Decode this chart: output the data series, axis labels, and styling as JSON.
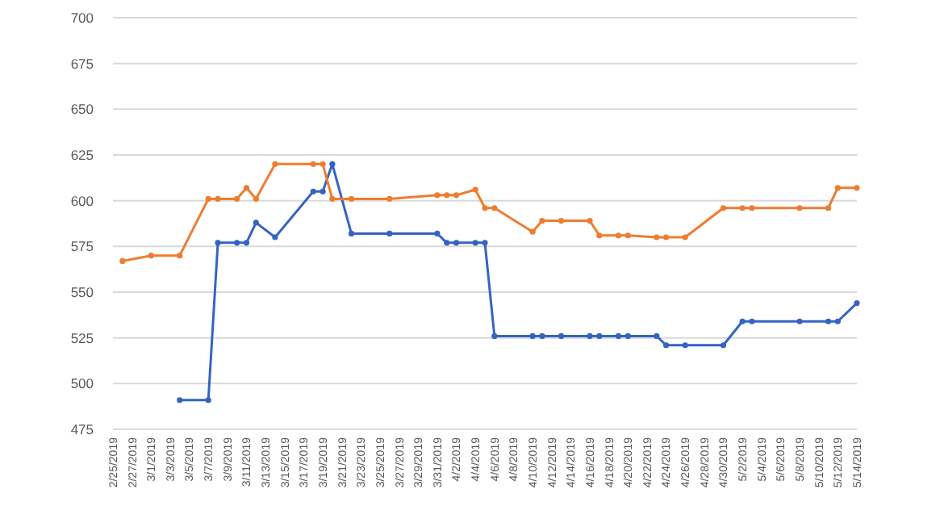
{
  "chart_data": {
    "type": "line",
    "marker": "circle",
    "grid": "y",
    "ylim": [
      475,
      700
    ],
    "yticks": [
      475,
      500,
      525,
      550,
      575,
      600,
      625,
      650,
      675,
      700
    ],
    "xlim": [
      "2019-02-25",
      "2019-05-14"
    ],
    "xticks": [
      {
        "value": "2019-02-25",
        "label": "2/25/2019"
      },
      {
        "value": "2019-02-27",
        "label": "2/27/2019"
      },
      {
        "value": "2019-03-01",
        "label": "3/1/2019"
      },
      {
        "value": "2019-03-03",
        "label": "3/3/2019"
      },
      {
        "value": "2019-03-05",
        "label": "3/5/2019"
      },
      {
        "value": "2019-03-07",
        "label": "3/7/2019"
      },
      {
        "value": "2019-03-09",
        "label": "3/9/2019"
      },
      {
        "value": "2019-03-11",
        "label": "3/11/2019"
      },
      {
        "value": "2019-03-13",
        "label": "3/13/2019"
      },
      {
        "value": "2019-03-15",
        "label": "3/15/2019"
      },
      {
        "value": "2019-03-17",
        "label": "3/17/2019"
      },
      {
        "value": "2019-03-19",
        "label": "3/19/2019"
      },
      {
        "value": "2019-03-21",
        "label": "3/21/2019"
      },
      {
        "value": "2019-03-23",
        "label": "3/23/2019"
      },
      {
        "value": "2019-03-25",
        "label": "3/25/2019"
      },
      {
        "value": "2019-03-27",
        "label": "3/27/2019"
      },
      {
        "value": "2019-03-29",
        "label": "3/29/2019"
      },
      {
        "value": "2019-03-31",
        "label": "3/31/2019"
      },
      {
        "value": "2019-04-02",
        "label": "4/2/2019"
      },
      {
        "value": "2019-04-04",
        "label": "4/4/2019"
      },
      {
        "value": "2019-04-06",
        "label": "4/6/2019"
      },
      {
        "value": "2019-04-08",
        "label": "4/8/2019"
      },
      {
        "value": "2019-04-10",
        "label": "4/10/2019"
      },
      {
        "value": "2019-04-12",
        "label": "4/12/2019"
      },
      {
        "value": "2019-04-14",
        "label": "4/14/2019"
      },
      {
        "value": "2019-04-16",
        "label": "4/16/2019"
      },
      {
        "value": "2019-04-18",
        "label": "4/18/2019"
      },
      {
        "value": "2019-04-20",
        "label": "4/20/2019"
      },
      {
        "value": "2019-04-22",
        "label": "4/22/2019"
      },
      {
        "value": "2019-04-24",
        "label": "4/24/2019"
      },
      {
        "value": "2019-04-26",
        "label": "4/26/2019"
      },
      {
        "value": "2019-04-28",
        "label": "4/28/2019"
      },
      {
        "value": "2019-04-30",
        "label": "4/30/2019"
      },
      {
        "value": "2019-05-02",
        "label": "5/2/2019"
      },
      {
        "value": "2019-05-04",
        "label": "5/4/2019"
      },
      {
        "value": "2019-05-06",
        "label": "5/6/2019"
      },
      {
        "value": "2019-05-08",
        "label": "5/8/2019"
      },
      {
        "value": "2019-05-10",
        "label": "5/10/2019"
      },
      {
        "value": "2019-05-12",
        "label": "5/12/2019"
      },
      {
        "value": "2019-05-14",
        "label": "5/14/2019"
      }
    ],
    "series": [
      {
        "color": "#3563c4",
        "x": [
          "2019-03-04",
          "2019-03-07",
          "2019-03-08",
          "2019-03-10",
          "2019-03-11",
          "2019-03-12",
          "2019-03-14",
          "2019-03-18",
          "2019-03-19",
          "2019-03-20",
          "2019-03-22",
          "2019-03-26",
          "2019-03-31",
          "2019-04-01",
          "2019-04-02",
          "2019-04-04",
          "2019-04-05",
          "2019-04-06",
          "2019-04-10",
          "2019-04-11",
          "2019-04-13",
          "2019-04-16",
          "2019-04-17",
          "2019-04-19",
          "2019-04-20",
          "2019-04-23",
          "2019-04-24",
          "2019-04-26",
          "2019-04-30",
          "2019-05-02",
          "2019-05-03",
          "2019-05-08",
          "2019-05-11",
          "2019-05-12",
          "2019-05-14"
        ],
        "values": [
          491,
          491,
          577,
          577,
          577,
          588,
          580,
          605,
          605,
          620,
          582,
          582,
          582,
          577,
          577,
          577,
          577,
          526,
          526,
          526,
          526,
          526,
          526,
          526,
          526,
          526,
          521,
          521,
          521,
          534,
          534,
          534,
          534,
          534,
          544
        ]
      },
      {
        "color": "#ed7d31",
        "x": [
          "2019-02-26",
          "2019-03-01",
          "2019-03-04",
          "2019-03-07",
          "2019-03-08",
          "2019-03-10",
          "2019-03-11",
          "2019-03-12",
          "2019-03-14",
          "2019-03-18",
          "2019-03-19",
          "2019-03-20",
          "2019-03-22",
          "2019-03-26",
          "2019-03-31",
          "2019-04-01",
          "2019-04-02",
          "2019-04-04",
          "2019-04-05",
          "2019-04-06",
          "2019-04-10",
          "2019-04-11",
          "2019-04-13",
          "2019-04-16",
          "2019-04-17",
          "2019-04-19",
          "2019-04-20",
          "2019-04-23",
          "2019-04-24",
          "2019-04-26",
          "2019-04-30",
          "2019-05-02",
          "2019-05-03",
          "2019-05-08",
          "2019-05-11",
          "2019-05-12",
          "2019-05-14"
        ],
        "values": [
          567,
          570,
          570,
          601,
          601,
          601,
          607,
          601,
          620,
          620,
          620,
          601,
          601,
          601,
          603,
          603,
          603,
          606,
          596,
          596,
          583,
          589,
          589,
          589,
          581,
          581,
          581,
          580,
          580,
          580,
          596,
          596,
          596,
          596,
          596,
          607,
          607
        ]
      }
    ]
  }
}
